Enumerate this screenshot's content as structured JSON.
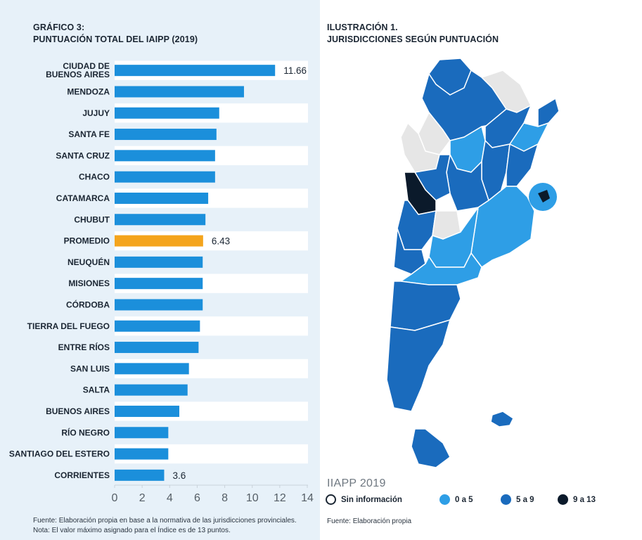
{
  "chart_data": {
    "type": "bar",
    "orientation": "horizontal",
    "title_line1": "GRÁFICO 3:",
    "title_line2": "PUNTUACIÓN TOTAL DEL IAIPP (2019)",
    "categories": [
      [
        "CIUDAD DE",
        "BUENOS AIRES"
      ],
      [
        "MENDOZA"
      ],
      [
        "JUJUY"
      ],
      [
        "SANTA FE"
      ],
      [
        "SANTA CRUZ"
      ],
      [
        "CHACO"
      ],
      [
        "CATAMARCA"
      ],
      [
        "CHUBUT"
      ],
      [
        "PROMEDIO"
      ],
      [
        "NEUQUÉN"
      ],
      [
        "MISIONES"
      ],
      [
        "CÓRDOBA"
      ],
      [
        "TIERRA DEL FUEGO"
      ],
      [
        "ENTRE RÍOS"
      ],
      [
        "SAN LUIS"
      ],
      [
        "SALTA"
      ],
      [
        "BUENOS AIRES"
      ],
      [
        "RÍO NEGRO"
      ],
      [
        "SANTIAGO DEL ESTERO"
      ],
      [
        "CORRIENTES"
      ]
    ],
    "values": [
      11.66,
      9.4,
      7.6,
      7.4,
      7.3,
      7.3,
      6.8,
      6.6,
      6.43,
      6.4,
      6.4,
      6.4,
      6.2,
      6.1,
      5.4,
      5.3,
      4.7,
      3.9,
      3.9,
      3.6
    ],
    "value_labels": {
      "0": "11.66",
      "8": "6.43",
      "19": "3.6"
    },
    "highlight_index": 8,
    "xlim": [
      0,
      14
    ],
    "xticks": [
      "0",
      "2",
      "4",
      "6",
      "8",
      "10",
      "12",
      "14"
    ],
    "colors": {
      "bar": "#1b8fdb",
      "highlight": "#f4a41c",
      "row_band": "#ffffff"
    },
    "footnote_1": "Fuente: Elaboración propia en base a la normativa de las jurisdicciones provinciales.",
    "footnote_2": "Nota: El valor máximo asignado para el Índice es de 13 puntos."
  },
  "map": {
    "title_line1": "ILUSTRACIÓN 1.",
    "title_line2": "JURISDICCIONES SEGÚN PUNTUACIÓN",
    "watermark": "IIAPP 2019",
    "source": "Fuente: Elaboración propia",
    "legend": [
      {
        "label": "Sin información",
        "color": "#ffffff",
        "border": "#1b2633"
      },
      {
        "label": "0 a 5",
        "color": "#2e9ee6",
        "border": "#2e9ee6"
      },
      {
        "label": "5 a 9",
        "color": "#1a6bbd",
        "border": "#1a6bbd"
      },
      {
        "label": "9 a 13",
        "color": "#0b1a2b",
        "border": "#0b1a2b"
      }
    ]
  }
}
